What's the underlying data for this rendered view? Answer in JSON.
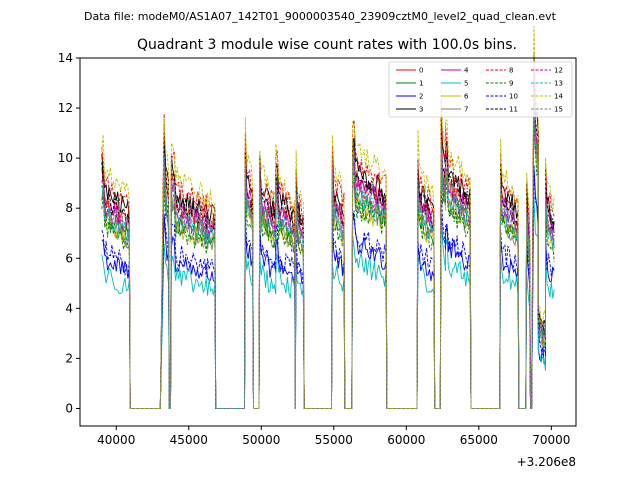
{
  "figure": {
    "suptitle": "Data file: modeM0/AS1A07_142T01_9000003540_23909cztM0_level2_quad_clean.evt"
  },
  "chart_data": {
    "type": "line",
    "title": "Quadrant 3 module wise count rates with 100.0s bins.",
    "xlabel": "",
    "ylabel": "",
    "x_offset_label": "+3.206e8",
    "xlim": [
      37500,
      71700
    ],
    "ylim": [
      -0.7,
      14.0
    ],
    "xticks": [
      40000,
      45000,
      50000,
      55000,
      60000,
      65000,
      70000
    ],
    "xtick_labels": [
      "40000",
      "45000",
      "50000",
      "55000",
      "60000",
      "65000",
      "70000"
    ],
    "yticks": [
      0,
      2,
      4,
      6,
      8,
      10,
      12,
      14
    ],
    "ytick_labels": [
      "0",
      "2",
      "4",
      "6",
      "8",
      "10",
      "12",
      "14"
    ],
    "legend_position": "top-right",
    "segments": [
      {
        "on_start": 39000,
        "on_end": 40900,
        "gap_end": 43100,
        "base": 1.0
      },
      {
        "on_start": 43300,
        "on_end": 43600,
        "gap_end": 43800,
        "base": 1.12
      },
      {
        "on_start": 43800,
        "on_end": 46800,
        "gap_end": 48900,
        "base": 0.98
      },
      {
        "on_start": 48900,
        "on_end": 49400,
        "gap_end": 49900,
        "base": 1.08
      },
      {
        "on_start": 49900,
        "on_end": 51000,
        "gap_end": 51000,
        "base": 1.0
      },
      {
        "on_start": 51000,
        "on_end": 52300,
        "gap_end": 52400,
        "base": 0.98
      },
      {
        "on_start": 52400,
        "on_end": 52900,
        "gap_end": 54900,
        "base": 0.94
      },
      {
        "on_start": 54900,
        "on_end": 55700,
        "gap_end": 56300,
        "base": 1.02
      },
      {
        "on_start": 56300,
        "on_end": 58600,
        "gap_end": 60800,
        "base": 1.1
      },
      {
        "on_start": 60800,
        "on_end": 61900,
        "gap_end": 62400,
        "base": 1.0
      },
      {
        "on_start": 62400,
        "on_end": 62700,
        "gap_end": 62700,
        "base": 1.2
      },
      {
        "on_start": 62700,
        "on_end": 64400,
        "gap_end": 66500,
        "base": 1.08
      },
      {
        "on_start": 66500,
        "on_end": 67700,
        "gap_end": 68300,
        "base": 1.0
      },
      {
        "on_start": 68300,
        "on_end": 68500,
        "gap_end": 68700,
        "base": 0.9
      },
      {
        "on_start": 68800,
        "on_end": 69100,
        "gap_end": 69100,
        "base": 1.4
      },
      {
        "on_start": 69100,
        "on_end": 69600,
        "gap_end": 69600,
        "base": 0.4
      },
      {
        "on_start": 69600,
        "on_end": 70200,
        "gap_end": 70200,
        "base": 0.95
      }
    ],
    "series": [
      {
        "name": "0",
        "color": "#ff0000",
        "dash": "solid",
        "level": 7.9
      },
      {
        "name": "1",
        "color": "#008000",
        "dash": "solid",
        "level": 7.3
      },
      {
        "name": "2",
        "color": "#0000ff",
        "dash": "solid",
        "level": 5.7
      },
      {
        "name": "3",
        "color": "#000000",
        "dash": "solid",
        "level": 8.3
      },
      {
        "name": "4",
        "color": "#bf00bf",
        "dash": "solid",
        "level": 7.8
      },
      {
        "name": "5",
        "color": "#00bfbf",
        "dash": "solid",
        "level": 5.1
      },
      {
        "name": "6",
        "color": "#bfbf00",
        "dash": "solid",
        "level": 7.1
      },
      {
        "name": "7",
        "color": "#808080",
        "dash": "solid",
        "level": 7.2
      },
      {
        "name": "8",
        "color": "#ff0000",
        "dash": "dashed",
        "level": 8.6
      },
      {
        "name": "9",
        "color": "#008000",
        "dash": "dashed",
        "level": 7.0
      },
      {
        "name": "10",
        "color": "#0000ff",
        "dash": "dashed",
        "level": 6.0
      },
      {
        "name": "11",
        "color": "#000000",
        "dash": "dashed",
        "level": 8.0
      },
      {
        "name": "12",
        "color": "#bf00bf",
        "dash": "dashed",
        "level": 7.6
      },
      {
        "name": "13",
        "color": "#00bfbf",
        "dash": "dashed",
        "level": 7.4
      },
      {
        "name": "14",
        "color": "#bfbf00",
        "dash": "dashed",
        "level": 9.0
      },
      {
        "name": "15",
        "color": "#808080",
        "dash": "dashed",
        "level": 7.7
      }
    ]
  }
}
